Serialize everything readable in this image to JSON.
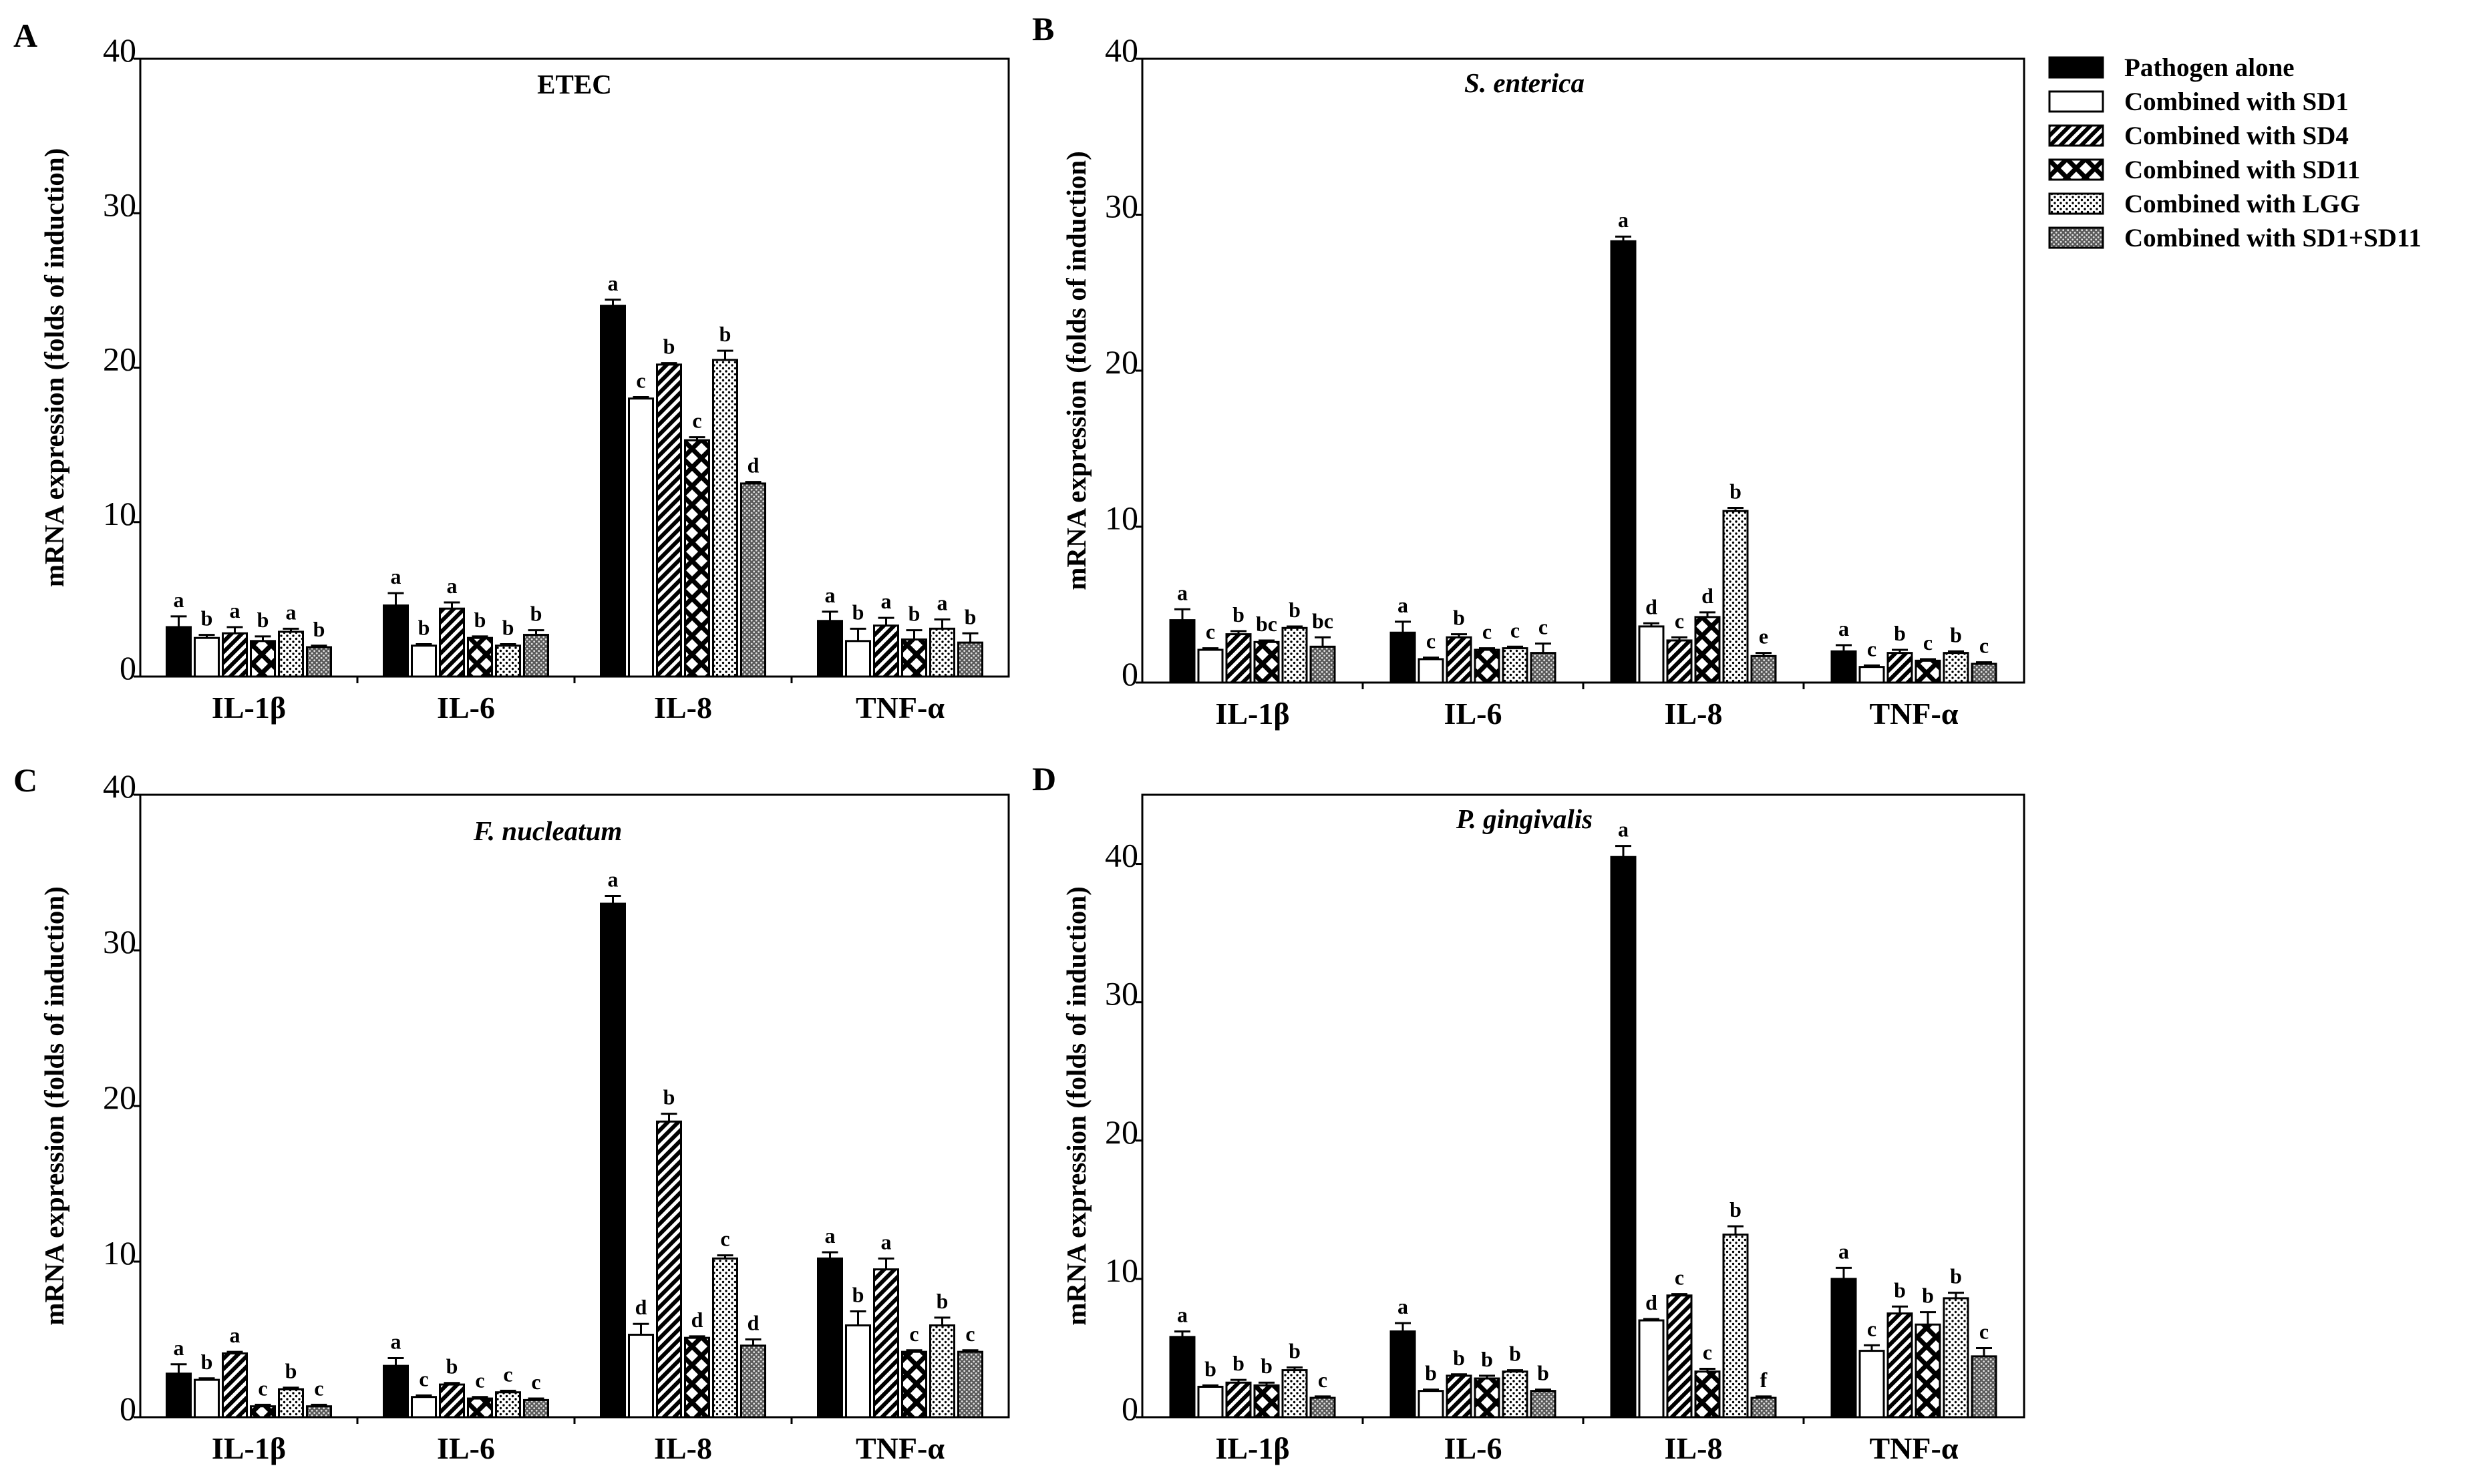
{
  "chart_data": [
    {
      "type": "bar",
      "panel_label": "A",
      "title": "ETEC",
      "title_italic": false,
      "xlabel": "",
      "ylabel": "mRNA expression (folds of induction)",
      "ylim": [
        0,
        40
      ],
      "y_ticks": [
        0,
        10,
        20,
        30,
        40
      ],
      "categories": [
        "IL-1β",
        "IL-6",
        "IL-8",
        "TNF-α"
      ],
      "series": [
        {
          "name": "Pathogen alone",
          "values": [
            3.2,
            4.6,
            24.0,
            3.6
          ],
          "errors": [
            0.7,
            0.8,
            0.4,
            0.6
          ],
          "letters": [
            "a",
            "a",
            "a",
            "a"
          ]
        },
        {
          "name": "Combined with SD1",
          "values": [
            2.5,
            2.0,
            18.0,
            2.3
          ],
          "errors": [
            0.2,
            0.1,
            0.1,
            0.8
          ],
          "letters": [
            "b",
            "b",
            "c",
            "b"
          ]
        },
        {
          "name": "Combined with SD4",
          "values": [
            2.8,
            4.4,
            20.2,
            3.3
          ],
          "errors": [
            0.4,
            0.4,
            0.1,
            0.5
          ],
          "letters": [
            "a",
            "a",
            "b",
            "a"
          ]
        },
        {
          "name": "Combined with SD11",
          "values": [
            2.3,
            2.5,
            15.3,
            2.4
          ],
          "errors": [
            0.3,
            0.1,
            0.2,
            0.6
          ],
          "letters": [
            "b",
            "b",
            "c",
            "b"
          ]
        },
        {
          "name": "Combined with LGG",
          "values": [
            2.9,
            2.0,
            20.5,
            3.1
          ],
          "errors": [
            0.2,
            0.1,
            0.6,
            0.6
          ],
          "letters": [
            "a",
            "b",
            "b",
            "a"
          ]
        },
        {
          "name": "Combined with SD1+SD11",
          "values": [
            1.9,
            2.7,
            12.5,
            2.2
          ],
          "errors": [
            0.1,
            0.3,
            0.1,
            0.6
          ],
          "letters": [
            "b",
            "b",
            "d",
            "b"
          ]
        }
      ]
    },
    {
      "type": "bar",
      "panel_label": "B",
      "title": "S. enterica",
      "title_italic": true,
      "xlabel": "",
      "ylabel": "mRNA expression (folds of induction)",
      "ylim": [
        0,
        40
      ],
      "y_ticks": [
        0,
        10,
        20,
        30,
        40
      ],
      "categories": [
        "IL-1β",
        "IL-6",
        "IL-8",
        "TNF-α"
      ],
      "series": [
        {
          "name": "Pathogen alone",
          "values": [
            4.0,
            3.2,
            28.3,
            2.0
          ],
          "errors": [
            0.7,
            0.7,
            0.3,
            0.4
          ],
          "letters": [
            "a",
            "a",
            "a",
            "a"
          ]
        },
        {
          "name": "Combined with SD1",
          "values": [
            2.1,
            1.5,
            3.6,
            1.0
          ],
          "errors": [
            0.1,
            0.1,
            0.2,
            0.1
          ],
          "letters": [
            "c",
            "c",
            "d",
            "c"
          ]
        },
        {
          "name": "Combined with SD4",
          "values": [
            3.1,
            2.9,
            2.7,
            1.9
          ],
          "errors": [
            0.2,
            0.2,
            0.2,
            0.2
          ],
          "letters": [
            "b",
            "b",
            "c",
            "b"
          ]
        },
        {
          "name": "Combined with SD11",
          "values": [
            2.6,
            2.1,
            4.2,
            1.4
          ],
          "errors": [
            0.1,
            0.1,
            0.3,
            0.1
          ],
          "letters": [
            "bc",
            "c",
            "d",
            "c"
          ]
        },
        {
          "name": "Combined with LGG",
          "values": [
            3.5,
            2.2,
            11.0,
            1.9
          ],
          "errors": [
            0.1,
            0.1,
            0.2,
            0.1
          ],
          "letters": [
            "b",
            "c",
            "b",
            "b"
          ]
        },
        {
          "name": "Combined with SD1+SD11",
          "values": [
            2.3,
            1.9,
            1.7,
            1.2
          ],
          "errors": [
            0.6,
            0.6,
            0.2,
            0.1
          ],
          "letters": [
            "bc",
            "c",
            "e",
            "c"
          ]
        }
      ]
    },
    {
      "type": "bar",
      "panel_label": "C",
      "title": "F. nucleatum",
      "title_italic": true,
      "xlabel": "",
      "ylabel": "mRNA expression (folds of induction)",
      "ylim": [
        0,
        40
      ],
      "y_ticks": [
        0,
        10,
        20,
        30,
        40
      ],
      "categories": [
        "IL-1β",
        "IL-6",
        "IL-8",
        "TNF-α"
      ],
      "series": [
        {
          "name": "Pathogen alone",
          "values": [
            2.8,
            3.3,
            33.0,
            10.2
          ],
          "errors": [
            0.6,
            0.5,
            0.5,
            0.4
          ],
          "letters": [
            "a",
            "a",
            "a",
            "a"
          ]
        },
        {
          "name": "Combined with SD1",
          "values": [
            2.4,
            1.3,
            5.3,
            5.9
          ],
          "errors": [
            0.1,
            0.1,
            0.7,
            0.9
          ],
          "letters": [
            "b",
            "c",
            "d",
            "b"
          ]
        },
        {
          "name": "Combined with SD4",
          "values": [
            4.1,
            2.1,
            19.0,
            9.5
          ],
          "errors": [
            0.1,
            0.1,
            0.5,
            0.7
          ],
          "letters": [
            "a",
            "b",
            "b",
            "a"
          ]
        },
        {
          "name": "Combined with SD11",
          "values": [
            0.7,
            1.2,
            5.1,
            4.2
          ],
          "errors": [
            0.1,
            0.1,
            0.1,
            0.1
          ],
          "letters": [
            "c",
            "c",
            "d",
            "c"
          ]
        },
        {
          "name": "Combined with LGG",
          "values": [
            1.8,
            1.6,
            10.2,
            5.9
          ],
          "errors": [
            0.1,
            0.1,
            0.2,
            0.5
          ],
          "letters": [
            "b",
            "c",
            "c",
            "b"
          ]
        },
        {
          "name": "Combined with SD1+SD11",
          "values": [
            0.7,
            1.1,
            4.6,
            4.2
          ],
          "errors": [
            0.1,
            0.1,
            0.4,
            0.1
          ],
          "letters": [
            "c",
            "c",
            "d",
            "c"
          ]
        }
      ]
    },
    {
      "type": "bar",
      "panel_label": "D",
      "title": "P. gingivalis",
      "title_italic": true,
      "xlabel": "",
      "ylabel": "mRNA expression (folds of induction)",
      "ylim": [
        0,
        45
      ],
      "y_ticks": [
        0,
        10,
        20,
        30,
        40
      ],
      "categories": [
        "IL-1β",
        "IL-6",
        "IL-8",
        "TNF-α"
      ],
      "series": [
        {
          "name": "Pathogen alone",
          "values": [
            5.8,
            6.2,
            40.5,
            10.0
          ],
          "errors": [
            0.4,
            0.6,
            0.8,
            0.8
          ],
          "letters": [
            "a",
            "a",
            "a",
            "a"
          ]
        },
        {
          "name": "Combined with SD1",
          "values": [
            2.2,
            1.9,
            7.0,
            4.8
          ],
          "errors": [
            0.1,
            0.1,
            0.1,
            0.4
          ],
          "letters": [
            "b",
            "b",
            "d",
            "c"
          ]
        },
        {
          "name": "Combined with SD4",
          "values": [
            2.5,
            3.0,
            8.8,
            7.5
          ],
          "errors": [
            0.2,
            0.1,
            0.1,
            0.5
          ],
          "letters": [
            "b",
            "b",
            "c",
            "b"
          ]
        },
        {
          "name": "Combined with SD11",
          "values": [
            2.3,
            2.8,
            3.3,
            6.7
          ],
          "errors": [
            0.2,
            0.2,
            0.2,
            0.9
          ],
          "letters": [
            "b",
            "b",
            "c",
            "b"
          ]
        },
        {
          "name": "Combined with LGG",
          "values": [
            3.4,
            3.3,
            13.2,
            8.6
          ],
          "errors": [
            0.2,
            0.1,
            0.6,
            0.4
          ],
          "letters": [
            "b",
            "b",
            "b",
            "b"
          ]
        },
        {
          "name": "Combined with SD1+SD11",
          "values": [
            1.4,
            1.9,
            1.4,
            4.4
          ],
          "errors": [
            0.1,
            0.1,
            0.1,
            0.6
          ],
          "letters": [
            "c",
            "b",
            "f",
            "c"
          ]
        }
      ]
    }
  ],
  "legend": {
    "placement": "right of panel B",
    "items": [
      {
        "label": "Pathogen alone",
        "pattern": "solid-black"
      },
      {
        "label": "Combined with SD1",
        "pattern": "white"
      },
      {
        "label": "Combined with SD4",
        "pattern": "diagonal-hatch"
      },
      {
        "label": "Combined with SD11",
        "pattern": "cross-hatch"
      },
      {
        "label": "Combined with LGG",
        "pattern": "light-dots"
      },
      {
        "label": "Combined with SD1+SD11",
        "pattern": "dense-gray-dots"
      }
    ]
  },
  "colors": {
    "axis": "#000000",
    "pathogen_fill": "#000000",
    "background": "#ffffff"
  }
}
